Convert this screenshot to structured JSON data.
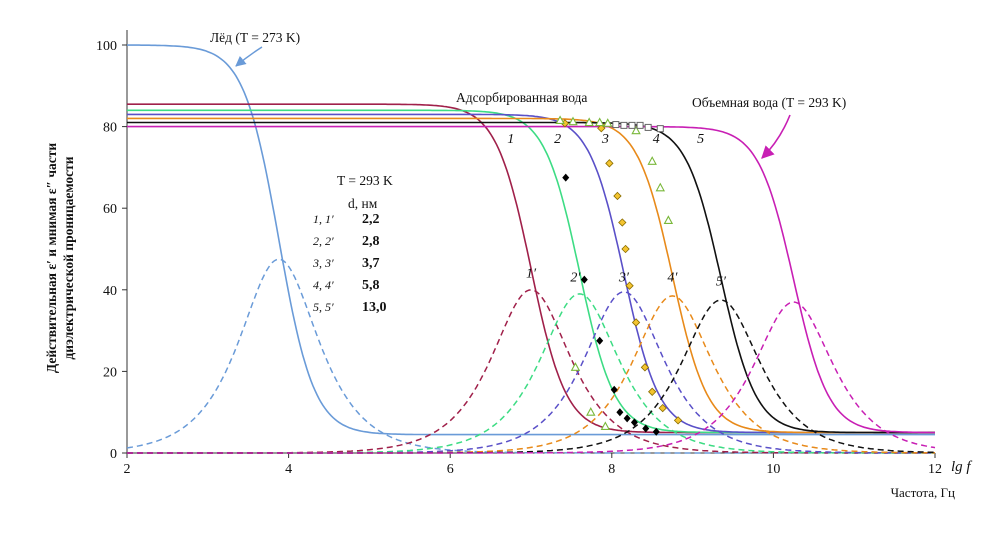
{
  "chart_data": {
    "type": "line",
    "title": "",
    "xlabel": "Частота, Гц",
    "xlabel_var": "lg f",
    "ylabel": [
      "Действительная ε′ и мнимая ε″ части",
      "диэлектрической проницаемости"
    ],
    "xlim": [
      2,
      12
    ],
    "ylim": [
      0,
      100
    ],
    "xticks": [
      "2",
      "4",
      "6",
      "8",
      "10",
      "12"
    ],
    "yticks": [
      "0",
      "20",
      "40",
      "60",
      "80",
      "100"
    ],
    "grid": false,
    "annotations": {
      "ice": "Лёд (T = 273 K)",
      "adsorbed": "Адсорбированная вода",
      "bulk": "Объемная вода (T = 293 K)"
    },
    "legend": {
      "temp": "T = 293 K",
      "header": "d, нм",
      "rows": [
        {
          "id": "1, 1′",
          "d": "2,2"
        },
        {
          "id": "2, 2′",
          "d": "2,8"
        },
        {
          "id": "3, 3′",
          "d": "3,7"
        },
        {
          "id": "4, 4′",
          "d": "5,8"
        },
        {
          "id": "5, 5′",
          "d": "13,0"
        }
      ]
    },
    "series": [
      {
        "name": "Лёд",
        "color": "#6a9bd8",
        "eps_s": 100,
        "eps_inf": 4.5,
        "x0": 3.88,
        "peak": 47.5
      },
      {
        "name": "1",
        "label_real": "1",
        "label_imag": "1′",
        "color": "#a0204a",
        "eps_s": 85.5,
        "eps_inf": 5,
        "x0": 7.0,
        "peak": 40
      },
      {
        "name": "2",
        "label_real": "2",
        "label_imag": "2′",
        "color": "#3ddc84",
        "eps_s": 84,
        "eps_inf": 5,
        "x0": 7.6,
        "peak": 39
      },
      {
        "name": "3",
        "label_real": "3",
        "label_imag": "3′",
        "color": "#5a50c8",
        "eps_s": 83,
        "eps_inf": 5,
        "x0": 8.15,
        "peak": 39.5
      },
      {
        "name": "4",
        "label_real": "4",
        "label_imag": "4′",
        "color": "#e88a1a",
        "eps_s": 82,
        "eps_inf": 5,
        "x0": 8.75,
        "peak": 38.5
      },
      {
        "name": "5",
        "label_real": "5",
        "label_imag": "5′",
        "color": "#111111",
        "eps_s": 81,
        "eps_inf": 5,
        "x0": 9.35,
        "peak": 37.5
      },
      {
        "name": "Объемная вода",
        "color": "#c81fb4",
        "eps_s": 80,
        "eps_inf": 5,
        "x0": 10.25,
        "peak": 37
      }
    ],
    "markers": [
      {
        "series": "2",
        "shape": "diamond-filled",
        "color": "#000000",
        "points": [
          [
            7.43,
            67.5
          ],
          [
            7.66,
            42.5
          ],
          [
            7.85,
            27.5
          ],
          [
            8.1,
            10
          ],
          [
            8.28,
            7.5
          ],
          [
            8.42,
            6
          ],
          [
            8.55,
            5.2
          ],
          [
            8.03,
            15.5
          ],
          [
            8.19,
            8.5
          ]
        ]
      },
      {
        "series": "3",
        "shape": "circle-yellow",
        "color": "#f4c430",
        "points": [
          [
            7.42,
            80.8
          ],
          [
            7.87,
            79.6
          ],
          [
            7.97,
            71
          ],
          [
            8.07,
            63
          ],
          [
            8.13,
            56.5
          ],
          [
            8.17,
            50
          ],
          [
            8.22,
            41
          ],
          [
            8.3,
            32
          ],
          [
            8.41,
            21
          ],
          [
            8.5,
            15
          ],
          [
            8.63,
            11
          ],
          [
            8.82,
            8
          ]
        ]
      },
      {
        "series": "4",
        "shape": "triangle-open",
        "color": "#7ab83a",
        "points": [
          [
            7.36,
            81.5
          ],
          [
            7.52,
            81.2
          ],
          [
            7.72,
            81
          ],
          [
            7.85,
            81
          ],
          [
            7.95,
            80.8
          ],
          [
            8.3,
            79
          ],
          [
            8.5,
            71.5
          ],
          [
            8.6,
            65
          ],
          [
            8.7,
            57
          ],
          [
            7.55,
            21
          ],
          [
            7.74,
            10
          ],
          [
            7.92,
            6.5
          ]
        ]
      },
      {
        "series": "5",
        "shape": "square-open",
        "color": "#666666",
        "points": [
          [
            8.05,
            80.5
          ],
          [
            8.15,
            80.3
          ],
          [
            8.25,
            80.3
          ],
          [
            8.35,
            80.3
          ],
          [
            8.45,
            79.8
          ],
          [
            8.6,
            79.5
          ]
        ]
      }
    ]
  }
}
